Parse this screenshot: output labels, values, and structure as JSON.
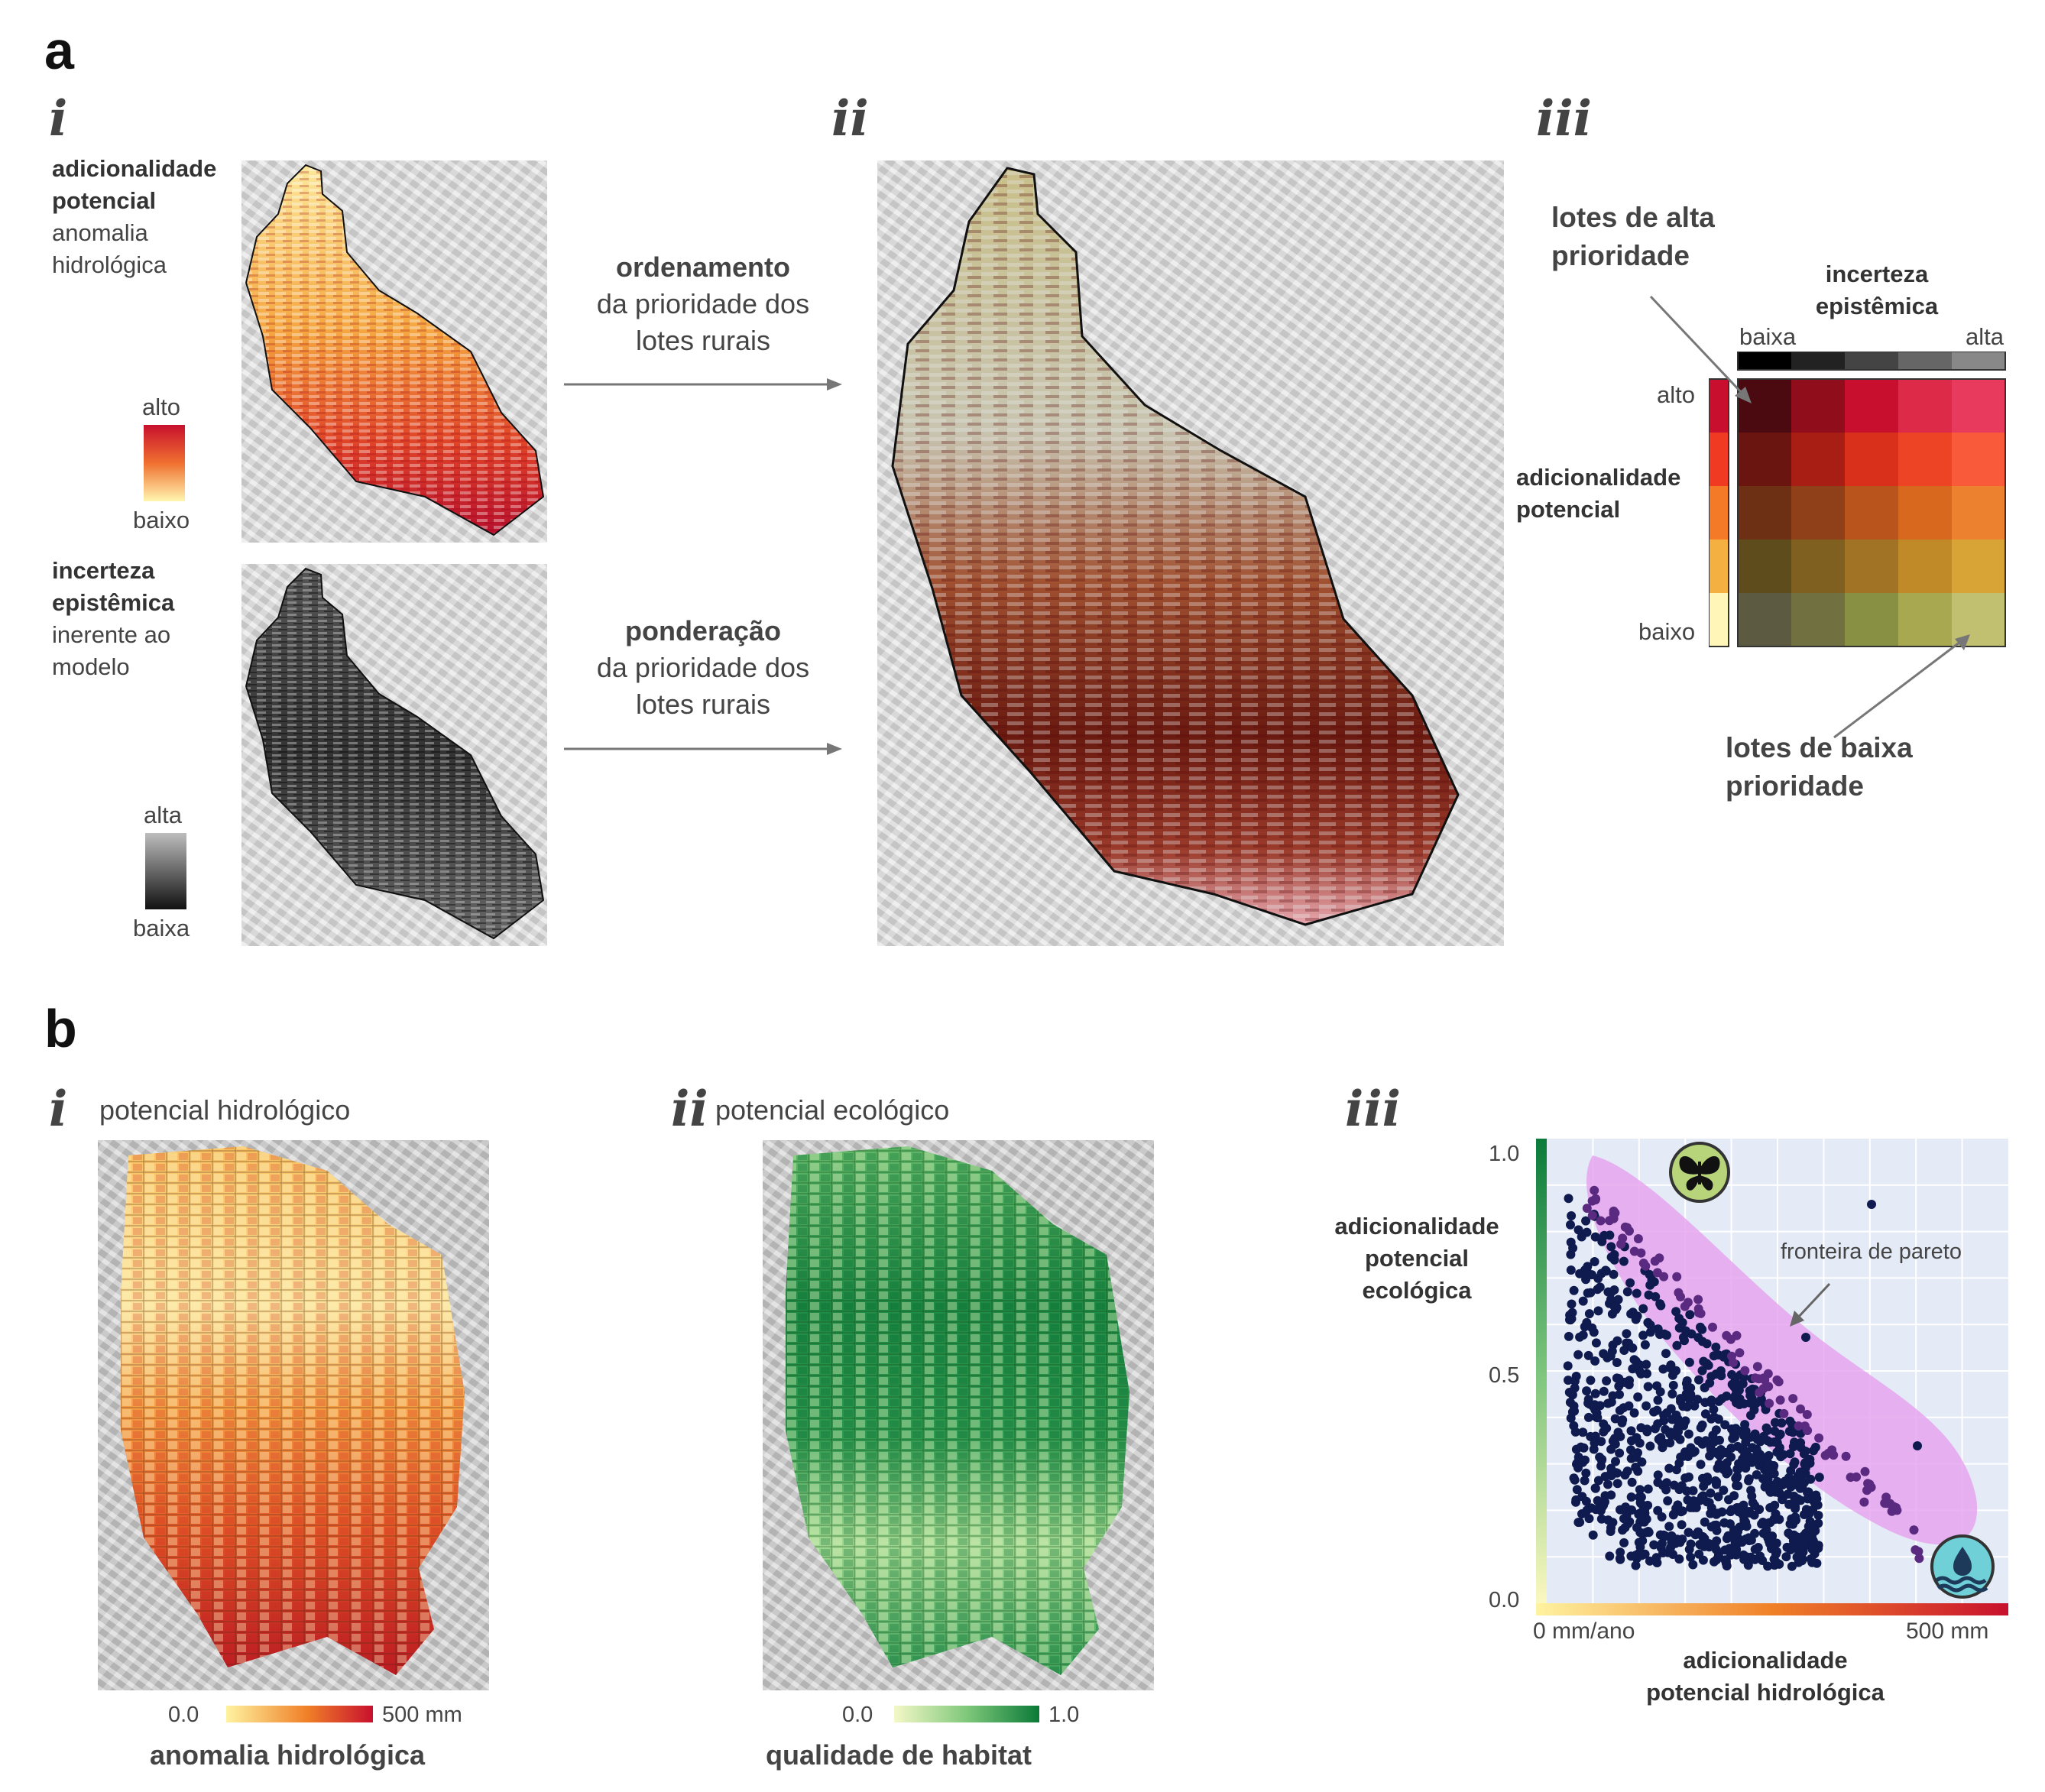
{
  "panel_a": {
    "letter": "a",
    "i": {
      "numeral": "i",
      "top_title_bold_1": "adicionalidade",
      "top_title_bold_2": "potencial",
      "top_sub_1": "anomalia",
      "top_sub_2": "hidrológica",
      "top_legend_high": "alto",
      "top_legend_low": "baixo",
      "bottom_title_bold_1": "incerteza",
      "bottom_title_bold_2": "epistêmica",
      "bottom_sub_1": "inerente ao",
      "bottom_sub_2": "modelo",
      "bottom_legend_high": "alta",
      "bottom_legend_low": "baixa",
      "colors": {
        "heat_high": "#c8102e",
        "heat_mid": "#f08030",
        "heat_low": "#fff6b0",
        "grey_high": "#bbbbbb",
        "grey_low": "#111111"
      }
    },
    "arrow1": {
      "bold": "ordenamento",
      "line2": "da prioridade dos",
      "line3": "lotes rurais"
    },
    "arrow2": {
      "bold": "ponderação",
      "line2": "da prioridade dos",
      "line3": "lotes rurais"
    },
    "ii": {
      "numeral": "ii"
    },
    "iii": {
      "numeral": "iii",
      "high_priority_1": "lotes de alta",
      "high_priority_2": "prioridade",
      "low_priority_1": "lotes de baixa",
      "low_priority_2": "prioridade",
      "x_title_1": "incerteza",
      "x_title_2": "epistêmica",
      "x_low": "baixa",
      "x_high": "alta",
      "y_title_1": "adicionalidade",
      "y_title_2": "potencial",
      "y_high": "alto",
      "y_low": "baixo",
      "grid_colors": [
        [
          "#4a0a10",
          "#900d1c",
          "#c8102e",
          "#dc2a48",
          "#e83a5c"
        ],
        [
          "#6a1510",
          "#a81e14",
          "#d8301a",
          "#ec4424",
          "#f85a3a"
        ],
        [
          "#6e3014",
          "#904018",
          "#b8541c",
          "#d8681e",
          "#ec8230"
        ],
        [
          "#5e4c1c",
          "#806020",
          "#a07424",
          "#c08a28",
          "#d8a436"
        ],
        [
          "#5c5a40",
          "#707040",
          "#889044",
          "#a8a850",
          "#c0c070"
        ]
      ],
      "x_bar_colors": [
        "#000000",
        "#222222",
        "#444444",
        "#666666",
        "#888888"
      ],
      "y_bar_colors": [
        "#c8102e",
        "#f03a22",
        "#f47a28",
        "#f4b040",
        "#fff6b8"
      ]
    }
  },
  "panel_b": {
    "letter": "b",
    "i": {
      "numeral": "i",
      "title": "potencial hidrológico",
      "cbar_min": "0.0",
      "cbar_max": "500 mm",
      "cbar_label": "anomalia hidrológica",
      "colors": {
        "low": "#fff3a0",
        "mid": "#f08028",
        "high": "#c8102e"
      }
    },
    "ii": {
      "numeral": "ii",
      "title": "potencial ecológico",
      "cbar_min": "0.0",
      "cbar_max": "1.0",
      "cbar_label": "qualidade de habitat",
      "colors": {
        "low": "#f4f8c8",
        "mid": "#7fc87a",
        "high": "#0a7a38"
      }
    },
    "iii": {
      "numeral": "iii",
      "y_title_1": "adicionalidade",
      "y_title_2": "potencial",
      "y_title_3": "ecológica",
      "x_title_1": "adicionalidade",
      "x_title_2": "potencial hidrológica",
      "x_min_label": "0 mm/ano",
      "x_max_label": "500 mm",
      "y_ticks": [
        "1.0",
        "0.5",
        "0.0"
      ],
      "annotation": "fronteira de pareto",
      "butterfly_icon": "butterfly-icon",
      "water_icon": "water-drop-icon",
      "colors": {
        "points": "#0f1a4e",
        "frontier_points": "#5a2a80",
        "pareto_region": "#e6a6ee",
        "plot_bg": "#e4eaf6"
      },
      "chart_data": {
        "type": "scatter",
        "xlabel": "adicionalidade potencial hidrológica",
        "ylabel": "adicionalidade potencial ecológica",
        "xlim": [
          0,
          500
        ],
        "ylim": [
          0,
          1
        ],
        "grid": true
      }
    }
  }
}
